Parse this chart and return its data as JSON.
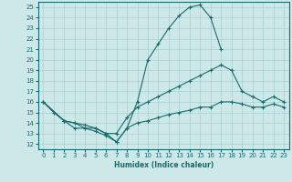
{
  "xlabel": "Humidex (Indice chaleur)",
  "bg_color": "#cce8e8",
  "grid_color": "#aacfcf",
  "line_color": "#1a6b6b",
  "xlim": [
    -0.5,
    23.5
  ],
  "ylim": [
    11.5,
    25.5
  ],
  "xticks": [
    0,
    1,
    2,
    3,
    4,
    5,
    6,
    7,
    8,
    9,
    10,
    11,
    12,
    13,
    14,
    15,
    16,
    17,
    18,
    19,
    20,
    21,
    22,
    23
  ],
  "yticks": [
    12,
    13,
    14,
    15,
    16,
    17,
    18,
    19,
    20,
    21,
    22,
    23,
    24,
    25
  ],
  "line1_x": [
    0,
    1,
    2,
    3,
    4,
    5,
    6,
    7,
    8,
    9,
    10,
    11,
    12,
    13,
    14,
    15,
    16,
    17
  ],
  "line1_y": [
    16,
    15,
    14.2,
    14,
    13.5,
    13.2,
    12.8,
    12.2,
    13.5,
    16,
    20,
    21.5,
    23,
    24.2,
    25,
    25.2,
    24,
    21
  ],
  "line2_x": [
    0,
    2,
    3,
    4,
    5,
    6,
    7,
    8,
    9,
    10,
    11,
    12,
    13,
    14,
    15,
    16,
    17,
    18,
    19,
    20,
    21,
    22,
    23
  ],
  "line2_y": [
    16,
    14.2,
    14,
    13.8,
    13.5,
    13,
    13,
    14.5,
    15.5,
    16,
    16.5,
    17,
    17.5,
    18,
    18.5,
    19,
    19.5,
    19,
    17,
    16.5,
    16,
    16.5,
    16
  ],
  "line3_x": [
    0,
    2,
    3,
    4,
    5,
    6,
    7,
    8,
    9,
    10,
    11,
    12,
    13,
    14,
    15,
    16,
    17,
    18,
    19,
    20,
    21,
    22,
    23
  ],
  "line3_y": [
    16,
    14.2,
    13.5,
    13.5,
    13.5,
    13,
    12.2,
    13.5,
    14,
    14.2,
    14.5,
    14.8,
    15,
    15.2,
    15.5,
    15.5,
    16,
    16,
    15.8,
    15.5,
    15.5,
    15.8,
    15.5
  ]
}
